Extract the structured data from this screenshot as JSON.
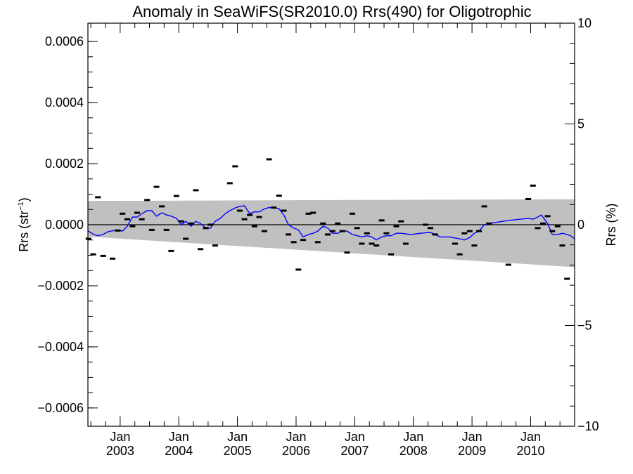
{
  "chart_data": {
    "type": "scatter",
    "title": "Anomaly in SeaWiFS(SR2010.0) Rrs(490) for Oligotrophic",
    "ylabel_left_main": "Rrs (str",
    "ylabel_left_sup": "−1",
    "ylabel_left_close": ")",
    "ylabel_right": "Rrs (%)",
    "xlim": [
      2002.45,
      2010.75
    ],
    "ylim_left": [
      -0.00066,
      0.00066
    ],
    "ylim_right": [
      -10,
      10
    ],
    "y_ticks_left": [
      {
        "value": 0.0006,
        "label": "0.0006"
      },
      {
        "value": 0.0004,
        "label": "0.0004"
      },
      {
        "value": 0.0002,
        "label": "0.0002"
      },
      {
        "value": 0.0,
        "label": "0.0000"
      },
      {
        "value": -0.0002,
        "label": "−0.0002"
      },
      {
        "value": -0.0004,
        "label": "−0.0004"
      },
      {
        "value": -0.0006,
        "label": "−0.0006"
      }
    ],
    "y_ticks_right": [
      {
        "value": 10,
        "label": "10"
      },
      {
        "value": 5,
        "label": "5"
      },
      {
        "value": 0,
        "label": "0"
      },
      {
        "value": -5,
        "label": "−5"
      },
      {
        "value": -10,
        "label": "−10"
      }
    ],
    "x_ticks": [
      {
        "value": 2003.0,
        "month": "Jan",
        "year": "2003"
      },
      {
        "value": 2004.0,
        "month": "Jan",
        "year": "2004"
      },
      {
        "value": 2005.0,
        "month": "Jan",
        "year": "2005"
      },
      {
        "value": 2006.0,
        "month": "Jan",
        "year": "2006"
      },
      {
        "value": 2007.0,
        "month": "Jan",
        "year": "2007"
      },
      {
        "value": 2008.0,
        "month": "Jan",
        "year": "2008"
      },
      {
        "value": 2009.0,
        "month": "Jan",
        "year": "2009"
      },
      {
        "value": 2010.0,
        "month": "Jan",
        "year": "2010"
      }
    ],
    "band": {
      "upper": [
        [
          2002.45,
          7.78e-05
        ],
        [
          2010.75,
          8.35e-05
        ]
      ],
      "lower": [
        [
          2002.45,
          -3.9e-05
        ],
        [
          2010.75,
          -0.000139
        ]
      ]
    },
    "zero_line": 0.0,
    "points": [
      [
        2002.46,
        -4.6e-05
      ],
      [
        2002.54,
        -9.7e-05
      ],
      [
        2002.62,
        9e-05
      ],
      [
        2002.71,
        -0.000102
      ],
      [
        2002.87,
        -0.000111
      ],
      [
        2002.96,
        -1.9e-05
      ],
      [
        2003.04,
        3.6e-05
      ],
      [
        2003.12,
        1.8e-05
      ],
      [
        2003.21,
        -5e-06
      ],
      [
        2003.29,
        3.9e-05
      ],
      [
        2003.37,
        1.8e-05
      ],
      [
        2003.46,
        8.1e-05
      ],
      [
        2003.54,
        -1.7e-05
      ],
      [
        2003.62,
        0.000124
      ],
      [
        2003.71,
        6e-05
      ],
      [
        2003.79,
        -1.7e-05
      ],
      [
        2003.87,
        -8.6e-05
      ],
      [
        2003.96,
        9.4e-05
      ],
      [
        2004.04,
        1.1e-05
      ],
      [
        2004.12,
        -4.6e-05
      ],
      [
        2004.21,
        4e-06
      ],
      [
        2004.29,
        0.000113
      ],
      [
        2004.37,
        -8e-05
      ],
      [
        2004.46,
        -1.1e-05
      ],
      [
        2004.54,
        0.0
      ],
      [
        2004.62,
        -6.8e-05
      ],
      [
        2004.87,
        0.000136
      ],
      [
        2004.96,
        0.000191
      ],
      [
        2005.04,
        4.6e-05
      ],
      [
        2005.12,
        1.8e-05
      ],
      [
        2005.21,
        3.2e-05
      ],
      [
        2005.29,
        -5e-06
      ],
      [
        2005.37,
        2.5e-05
      ],
      [
        2005.46,
        -2.1e-05
      ],
      [
        2005.54,
        0.000214
      ],
      [
        2005.62,
        5.6e-05
      ],
      [
        2005.71,
        9.5e-05
      ],
      [
        2005.79,
        4.6e-05
      ],
      [
        2005.87,
        -3.2e-05
      ],
      [
        2005.96,
        -5.7e-05
      ],
      [
        2006.04,
        -0.000147
      ],
      [
        2006.12,
        -5e-05
      ],
      [
        2006.21,
        3.6e-05
      ],
      [
        2006.29,
        3.9e-05
      ],
      [
        2006.37,
        -5.7e-05
      ],
      [
        2006.46,
        4e-06
      ],
      [
        2006.54,
        -3.2e-05
      ],
      [
        2006.62,
        -2.1e-05
      ],
      [
        2006.71,
        4e-06
      ],
      [
        2006.79,
        -2.1e-05
      ],
      [
        2006.87,
        -9.1e-05
      ],
      [
        2006.96,
        3.6e-05
      ],
      [
        2007.04,
        -1.1e-05
      ],
      [
        2007.12,
        -6.2e-05
      ],
      [
        2007.21,
        -2.8e-05
      ],
      [
        2007.29,
        -6.2e-05
      ],
      [
        2007.37,
        -6.8e-05
      ],
      [
        2007.46,
        1.4e-05
      ],
      [
        2007.54,
        -2.8e-05
      ],
      [
        2007.62,
        -9.7e-05
      ],
      [
        2007.71,
        -5e-06
      ],
      [
        2007.79,
        1.1e-05
      ],
      [
        2007.87,
        -6.2e-05
      ],
      [
        2008.21,
        0.0
      ],
      [
        2008.29,
        -1.1e-05
      ],
      [
        2008.37,
        -3.2e-05
      ],
      [
        2008.71,
        -6.2e-05
      ],
      [
        2008.79,
        -9.7e-05
      ],
      [
        2008.87,
        -2.8e-05
      ],
      [
        2008.96,
        -2.1e-05
      ],
      [
        2009.04,
        -6.8e-05
      ],
      [
        2009.12,
        -2.1e-05
      ],
      [
        2009.21,
        6e-05
      ],
      [
        2009.29,
        4e-06
      ],
      [
        2009.62,
        -0.000131
      ],
      [
        2009.96,
        8.4e-05
      ],
      [
        2010.04,
        0.000128
      ],
      [
        2010.12,
        -1.1e-05
      ],
      [
        2010.21,
        4e-06
      ],
      [
        2010.29,
        2.8e-05
      ],
      [
        2010.37,
        -2.1e-05
      ],
      [
        2010.46,
        -5e-06
      ],
      [
        2010.54,
        -6.8e-05
      ],
      [
        2010.62,
        -0.000177
      ]
    ],
    "trend_line": [
      [
        2002.45,
        -2e-05
      ],
      [
        2002.55,
        -3.2e-05
      ],
      [
        2002.62,
        -3.6e-05
      ],
      [
        2002.71,
        -3.2e-05
      ],
      [
        2002.79,
        -2.3e-05
      ],
      [
        2002.87,
        -2e-05
      ],
      [
        2002.96,
        -1.7e-05
      ],
      [
        2003.04,
        -2.1e-05
      ],
      [
        2003.12,
        -5e-06
      ],
      [
        2003.21,
        2.5e-05
      ],
      [
        2003.29,
        2.5e-05
      ],
      [
        2003.37,
        3.6e-05
      ],
      [
        2003.46,
        4.6e-05
      ],
      [
        2003.54,
        4.6e-05
      ],
      [
        2003.62,
        2.8e-05
      ],
      [
        2003.71,
        3.9e-05
      ],
      [
        2003.79,
        3.2e-05
      ],
      [
        2003.87,
        2.8e-05
      ],
      [
        2003.96,
        2.1e-05
      ],
      [
        2004.04,
        0.0
      ],
      [
        2004.12,
        1.1e-05
      ],
      [
        2004.21,
        -5e-06
      ],
      [
        2004.29,
        1.1e-05
      ],
      [
        2004.37,
        4e-06
      ],
      [
        2004.46,
        -1.1e-05
      ],
      [
        2004.54,
        -1.1e-05
      ],
      [
        2004.62,
        1.1e-05
      ],
      [
        2004.71,
        2.1e-05
      ],
      [
        2004.79,
        3.6e-05
      ],
      [
        2004.87,
        4.6e-05
      ],
      [
        2004.96,
        5.5e-05
      ],
      [
        2005.04,
        6e-05
      ],
      [
        2005.12,
        6.2e-05
      ],
      [
        2005.21,
        3.6e-05
      ],
      [
        2005.29,
        4.2e-05
      ],
      [
        2005.37,
        4.2e-05
      ],
      [
        2005.46,
        5.2e-05
      ],
      [
        2005.54,
        5.6e-05
      ],
      [
        2005.62,
        5.6e-05
      ],
      [
        2005.71,
        5.2e-05
      ],
      [
        2005.79,
        3.2e-05
      ],
      [
        2005.87,
        0.0
      ],
      [
        2005.96,
        -1.1e-05
      ],
      [
        2006.04,
        -1.7e-05
      ],
      [
        2006.12,
        -4e-05
      ],
      [
        2006.21,
        -3.2e-05
      ],
      [
        2006.29,
        -2.8e-05
      ],
      [
        2006.37,
        -2.1e-05
      ],
      [
        2006.46,
        -5e-06
      ],
      [
        2006.54,
        -1.1e-05
      ],
      [
        2006.62,
        -2.8e-05
      ],
      [
        2006.71,
        -2.8e-05
      ],
      [
        2006.79,
        -2.1e-05
      ],
      [
        2006.87,
        -2.1e-05
      ],
      [
        2006.96,
        -3.2e-05
      ],
      [
        2007.04,
        -3.6e-05
      ],
      [
        2007.12,
        -4e-05
      ],
      [
        2007.21,
        -3.6e-05
      ],
      [
        2007.29,
        -4e-05
      ],
      [
        2007.37,
        -5e-05
      ],
      [
        2007.46,
        -4e-05
      ],
      [
        2007.54,
        -3.6e-05
      ],
      [
        2007.62,
        -3.6e-05
      ],
      [
        2007.71,
        -2.8e-05
      ],
      [
        2007.79,
        -2.8e-05
      ],
      [
        2007.96,
        -3.2e-05
      ],
      [
        2008.12,
        -2.8e-05
      ],
      [
        2008.29,
        -2.5e-05
      ],
      [
        2008.46,
        -4e-05
      ],
      [
        2008.62,
        -4e-05
      ],
      [
        2008.79,
        -4.6e-05
      ],
      [
        2008.87,
        -5e-05
      ],
      [
        2008.96,
        -4.2e-05
      ],
      [
        2009.04,
        -2.8e-05
      ],
      [
        2009.12,
        -2.1e-05
      ],
      [
        2009.21,
        0.0
      ],
      [
        2009.29,
        4e-06
      ],
      [
        2009.62,
        1.4e-05
      ],
      [
        2009.96,
        2.1e-05
      ],
      [
        2010.04,
        1.8e-05
      ],
      [
        2010.12,
        2.5e-05
      ],
      [
        2010.18,
        3.2e-05
      ],
      [
        2010.21,
        2.5e-05
      ],
      [
        2010.29,
        4e-06
      ],
      [
        2010.37,
        -3.2e-05
      ],
      [
        2010.46,
        -3.2e-05
      ],
      [
        2010.54,
        -2.8e-05
      ],
      [
        2010.62,
        -3.2e-05
      ],
      [
        2010.68,
        -3.6e-05
      ],
      [
        2010.75,
        -4.6e-05
      ]
    ],
    "colors": {
      "band": "#c0c0c0",
      "trend": "#0000ff",
      "points": "#000000",
      "axes": "#000000"
    },
    "grid": false
  }
}
